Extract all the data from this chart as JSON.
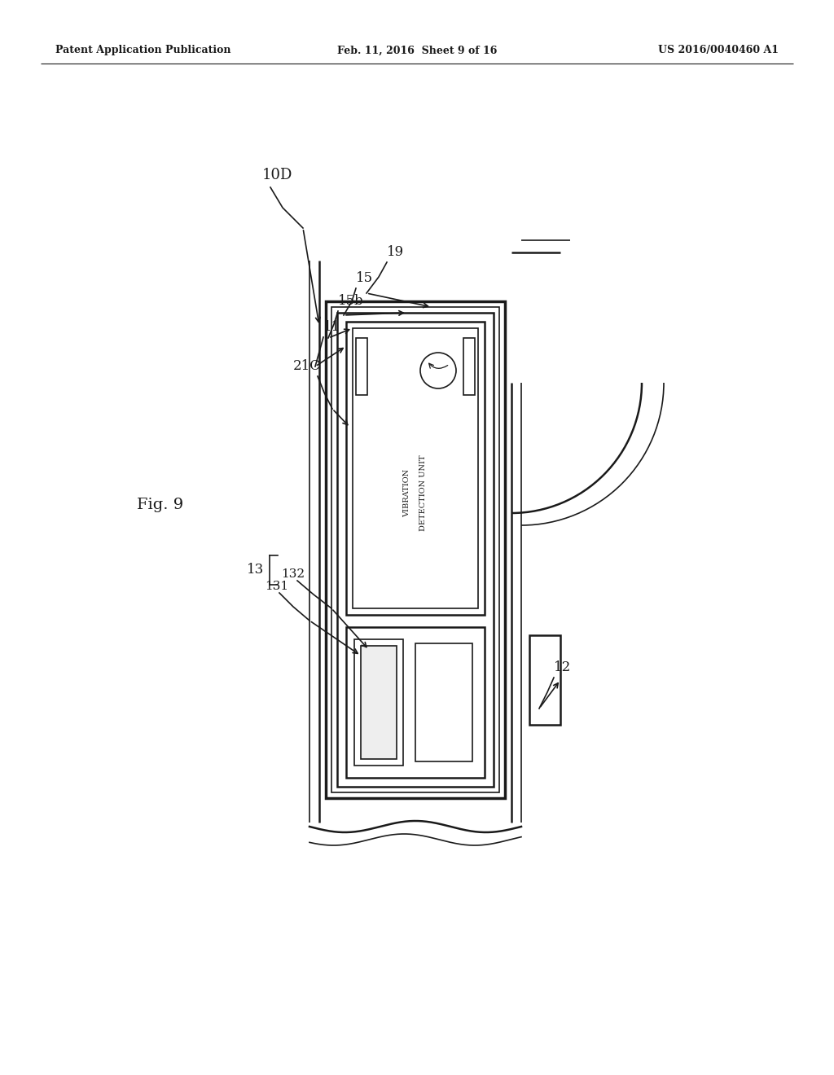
{
  "bg_color": "#ffffff",
  "line_color": "#1a1a1a",
  "header_left": "Patent Application Publication",
  "header_center": "Feb. 11, 2016  Sheet 9 of 16",
  "header_right": "US 2016/0040460 A1",
  "fig_label": "Fig. 9",
  "label_10D": "10D",
  "label_19": "19",
  "label_15": "15",
  "label_15b": "15b",
  "label_11": "11",
  "label_21C": "21C",
  "label_13": "13",
  "label_131": "131",
  "label_132": "132",
  "label_12": "12",
  "label_vib": [
    "VIBRATION",
    "DETECTION UNIT"
  ]
}
